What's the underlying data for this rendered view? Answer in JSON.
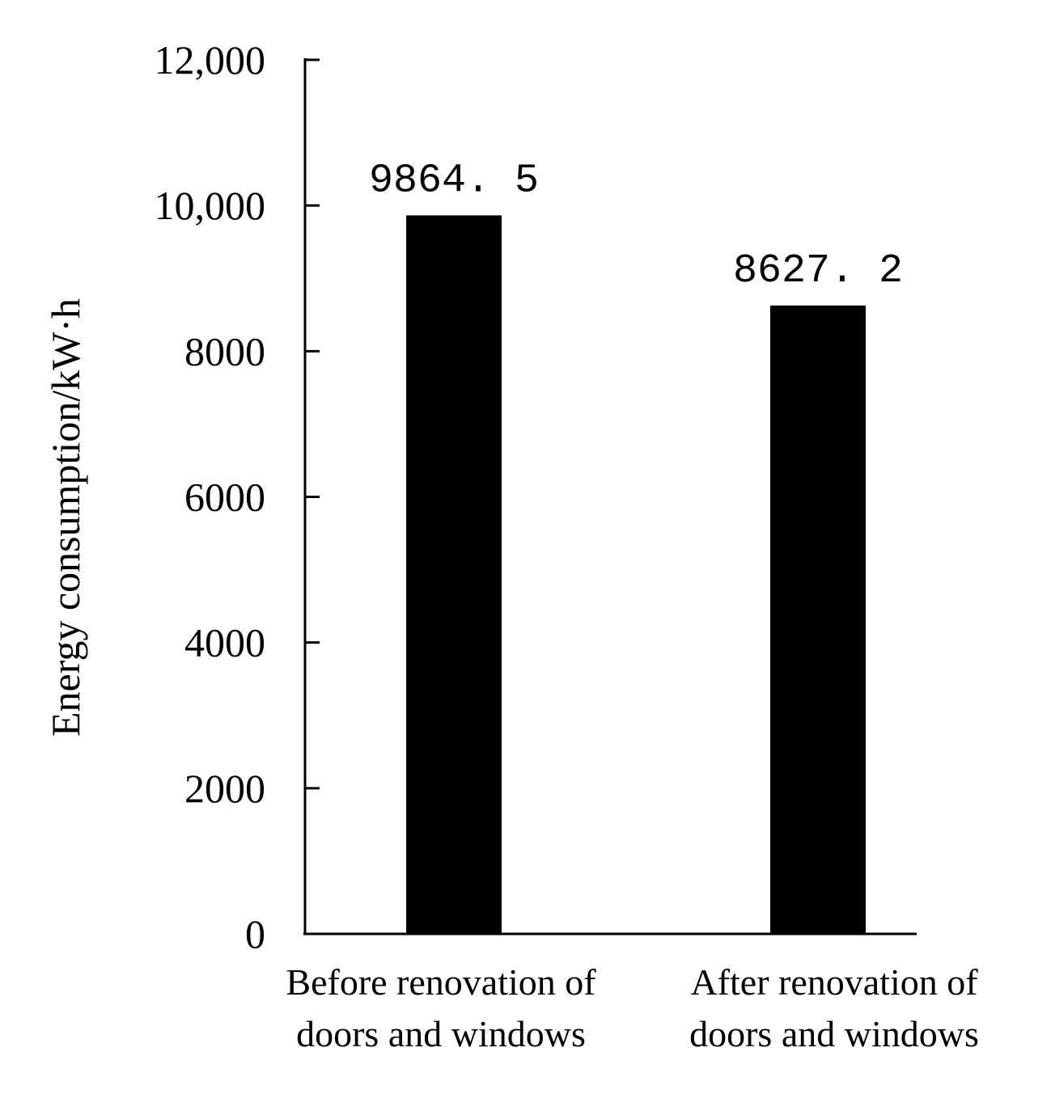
{
  "chart_data": {
    "type": "bar",
    "title": "",
    "xlabel": "",
    "ylabel": "Energy consumption/kW·h",
    "ylim": [
      0,
      12000
    ],
    "yticks": [
      0,
      2000,
      4000,
      6000,
      8000,
      10000,
      12000
    ],
    "ytick_labels": [
      "0",
      "2000",
      "4000",
      "6000",
      "8000",
      "10,000",
      "12,000"
    ],
    "categories": [
      [
        "Before renovation of",
        "doors and windows"
      ],
      [
        "After renovation of",
        "doors and windows"
      ]
    ],
    "values": [
      9864.5,
      8627.2
    ],
    "value_labels": [
      "9864. 5",
      "8627. 2"
    ],
    "bar_color": "#000000",
    "grid": false,
    "legend": "none"
  }
}
